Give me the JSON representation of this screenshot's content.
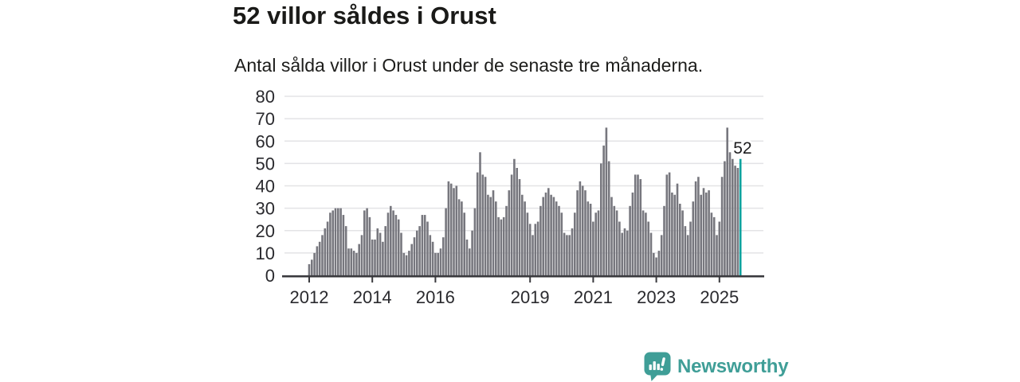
{
  "header": {
    "title": "52 villor såldes i Orust",
    "subtitle": "Antal sålda villor i Orust under de senaste tre månaderna."
  },
  "chart_data": {
    "type": "bar",
    "title": "52 villor såldes i Orust",
    "subtitle": "Antal sålda villor i Orust under de senaste tre månaderna.",
    "frequency": "monthly",
    "x_start": "2012-01",
    "x_end": "2025-09",
    "ylim": [
      0,
      80
    ],
    "yticks": [
      0,
      10,
      20,
      30,
      40,
      50,
      60,
      70,
      80
    ],
    "xticks": [
      {
        "label": "2012",
        "month_index": 0
      },
      {
        "label": "2014",
        "month_index": 24
      },
      {
        "label": "2016",
        "month_index": 48
      },
      {
        "label": "2019",
        "month_index": 84
      },
      {
        "label": "2021",
        "month_index": 108
      },
      {
        "label": "2023",
        "month_index": 132
      },
      {
        "label": "2025",
        "month_index": 156
      }
    ],
    "grid": true,
    "legend_position": "none",
    "bar_color": "#77777e",
    "axis_color": "#3a3a3e",
    "grid_color": "#e3e3e6",
    "tick_label_color": "#2a2a2e",
    "highlight": {
      "index": 164,
      "value": 52,
      "label": "52",
      "color": "#0aa29e",
      "label_color": "#1d1d1f"
    },
    "values": [
      5,
      7,
      10,
      13,
      15,
      18,
      21,
      24,
      28,
      29,
      30,
      30,
      30,
      27,
      22,
      12,
      12,
      11,
      10,
      14,
      18,
      29,
      30,
      26,
      16,
      16,
      21,
      19,
      15,
      22,
      28,
      31,
      29,
      27,
      25,
      19,
      10,
      9,
      11,
      14,
      17,
      20,
      22,
      27,
      27,
      24,
      18,
      15,
      10,
      10,
      12,
      17,
      30,
      42,
      41,
      39,
      40,
      34,
      33,
      28,
      16,
      12,
      20,
      30,
      46,
      55,
      45,
      44,
      36,
      35,
      38,
      33,
      26,
      25,
      26,
      31,
      38,
      45,
      52,
      48,
      43,
      36,
      33,
      28,
      23,
      18,
      23,
      24,
      31,
      35,
      37,
      39,
      36,
      35,
      33,
      31,
      28,
      19,
      18,
      18,
      21,
      28,
      38,
      42,
      40,
      38,
      33,
      32,
      24,
      28,
      29,
      50,
      58,
      66,
      51,
      35,
      31,
      29,
      24,
      19,
      21,
      20,
      31,
      37,
      45,
      45,
      43,
      29,
      28,
      24,
      19,
      10,
      8,
      11,
      18,
      31,
      45,
      46,
      37,
      36,
      41,
      32,
      29,
      22,
      18,
      24,
      33,
      42,
      44,
      36,
      39,
      37,
      38,
      28,
      26,
      18,
      24,
      44,
      51,
      66,
      55,
      52,
      49,
      48,
      52
    ]
  },
  "footer": {
    "brand": "Newsworthy",
    "logo_icon": "bar-chart-speech-bubble-icon",
    "brand_color": "#3f9e97"
  }
}
